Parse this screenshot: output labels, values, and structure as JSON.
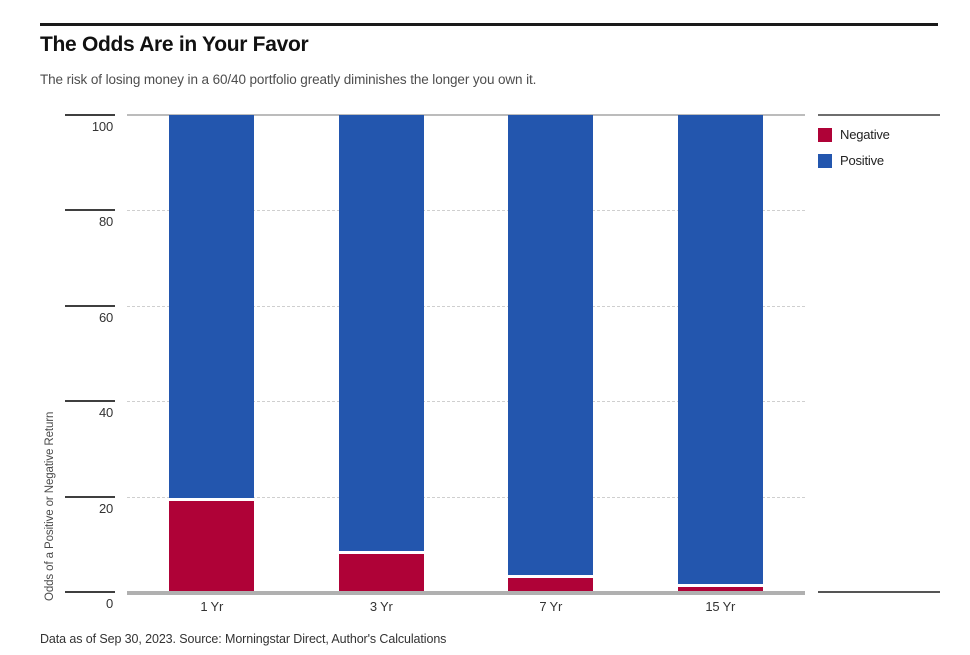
{
  "header": {
    "title": "The Odds Are in Your Favor",
    "subtitle": "The risk of losing money in a 60/40 portfolio greatly diminishes the longer you own it."
  },
  "chart_data": {
    "type": "bar",
    "stacked": true,
    "title": "The Odds Are in Your Favor",
    "categories": [
      "1 Yr",
      "3 Yr",
      "7 Yr",
      "15 Yr"
    ],
    "series": [
      {
        "name": "Negative",
        "color": "#AF0237",
        "values": [
          19,
          8,
          3,
          1
        ]
      },
      {
        "name": "Positive",
        "color": "#2356AE",
        "values": [
          81,
          92,
          97,
          99
        ]
      }
    ],
    "xlabel": "",
    "ylabel": "Odds of a Positive or Negative Return",
    "ylim": [
      0,
      100
    ],
    "yticks": [
      0,
      20,
      40,
      60,
      80,
      100
    ],
    "grid": "horizontal dashed at 20, 40, 60, 80",
    "legend_position": "top-right"
  },
  "footer": {
    "note": "Data as of Sep 30, 2023. Source: Morningstar Direct, Author's Calculations"
  }
}
